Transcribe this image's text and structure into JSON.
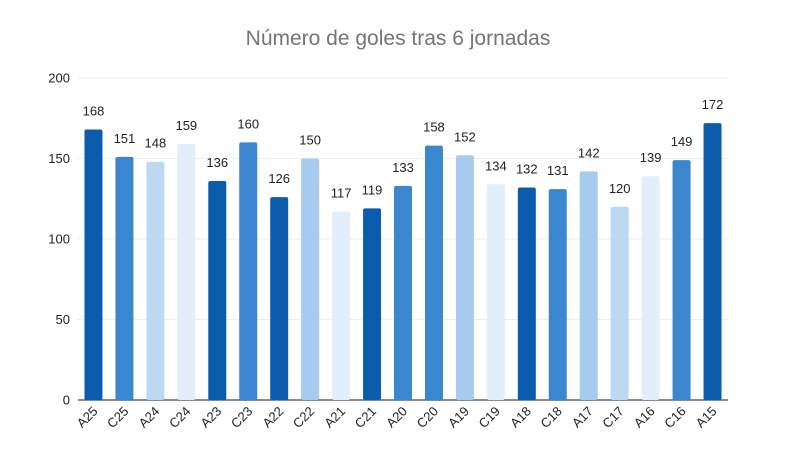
{
  "chart_data": {
    "type": "bar",
    "title": "Número de goles tras 6 jornadas",
    "xlabel": "",
    "ylabel": "",
    "ylim": [
      0,
      200
    ],
    "yticks": [
      0,
      50,
      100,
      150,
      200
    ],
    "grid": true,
    "categories": [
      "A25",
      "C25",
      "A24",
      "C24",
      "A23",
      "C23",
      "A22",
      "C22",
      "A21",
      "C21",
      "A20",
      "C20",
      "A19",
      "C19",
      "A18",
      "C18",
      "A17",
      "C17",
      "A16",
      "C16",
      "A15"
    ],
    "values": [
      168,
      151,
      148,
      159,
      136,
      160,
      126,
      150,
      117,
      119,
      133,
      158,
      152,
      134,
      132,
      131,
      142,
      120,
      139,
      149,
      172
    ],
    "bar_colors": [
      "#0b5cad",
      "#3a87d0",
      "#bcd8f2",
      "#e2eefa",
      "#0b5cad",
      "#3a87d0",
      "#0b5cad",
      "#a7cbee",
      "#e2eefa",
      "#0b5cad",
      "#3a87d0",
      "#3a87d0",
      "#a7cbee",
      "#e2eefa",
      "#0b5cad",
      "#3a87d0",
      "#a7cbee",
      "#bcd8f2",
      "#e2eefa",
      "#3a87d0",
      "#0b5cad"
    ]
  }
}
